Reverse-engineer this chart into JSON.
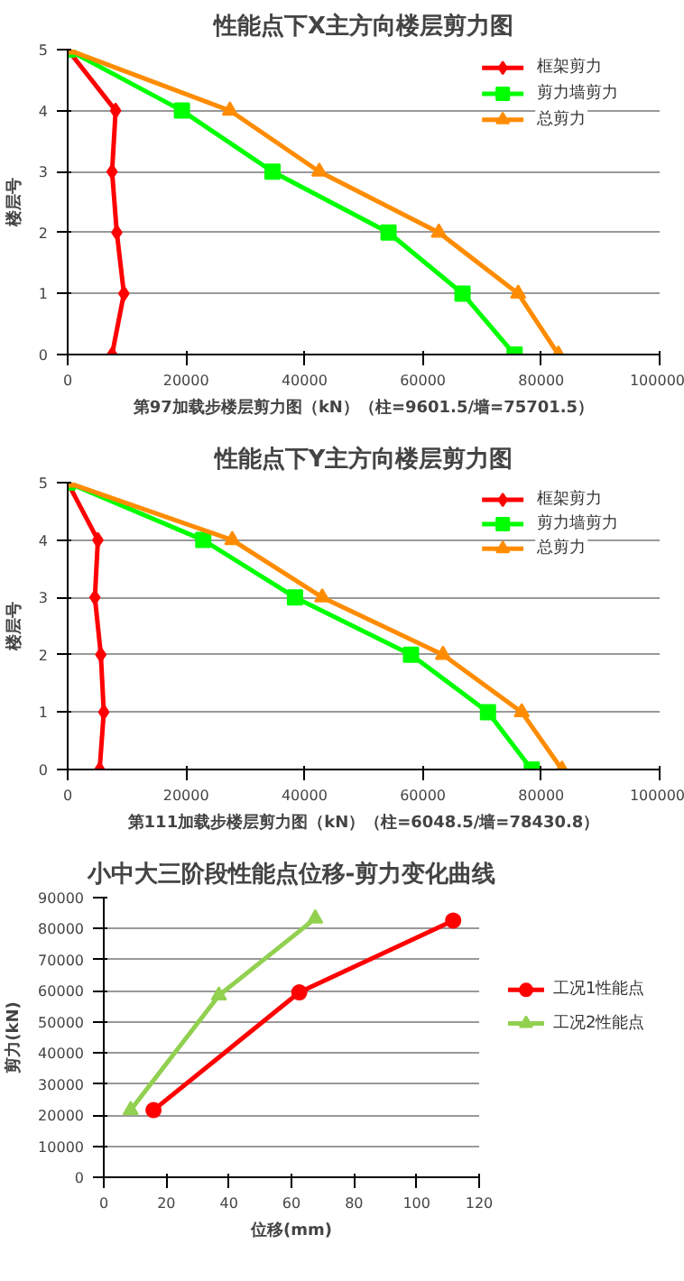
{
  "chart_data": [
    {
      "type": "line",
      "title": "性能点下X主方向楼层剪力图",
      "xlabel": "第97加载步楼层剪力图（kN）（柱=9601.5/墙=75701.5）",
      "ylabel": "楼层号",
      "orientation": "horizontal",
      "categories": [
        "5",
        "4",
        "3",
        "2",
        "1",
        "0"
      ],
      "xlim": [
        0,
        100000
      ],
      "xticks": [
        0,
        20000,
        40000,
        60000,
        80000,
        100000
      ],
      "grid": "y",
      "legend": "top right",
      "series": [
        {
          "name": "框架剪力",
          "color": "#ff0000",
          "marker": "diamond",
          "values": [
            0,
            8100,
            7500,
            8300,
            9500,
            7500
          ]
        },
        {
          "name": "剪力墙剪力",
          "color": "#00ff00",
          "marker": "square",
          "values": [
            0,
            19300,
            34600,
            54200,
            66700,
            75500
          ]
        },
        {
          "name": "总剪力",
          "color": "#ff8c00",
          "marker": "triangle",
          "values": [
            0,
            27400,
            42500,
            62700,
            76100,
            82900
          ]
        }
      ]
    },
    {
      "type": "line",
      "title": "性能点下Y主方向楼层剪力图",
      "xlabel": "第111加载步楼层剪力图（kN）（柱=6048.5/墙=78430.8）",
      "ylabel": "楼层号",
      "orientation": "horizontal",
      "categories": [
        "5",
        "4",
        "3",
        "2",
        "1",
        "0"
      ],
      "xlim": [
        0,
        100000
      ],
      "xticks": [
        0,
        20000,
        40000,
        60000,
        80000,
        100000
      ],
      "grid": "y",
      "legend": "top right",
      "series": [
        {
          "name": "框架剪力",
          "color": "#ff0000",
          "marker": "diamond",
          "values": [
            0,
            5100,
            4600,
            5600,
            6100,
            5400
          ]
        },
        {
          "name": "剪力墙剪力",
          "color": "#00ff00",
          "marker": "square",
          "values": [
            0,
            22900,
            38400,
            58000,
            71000,
            78400
          ]
        },
        {
          "name": "总剪力",
          "color": "#ff8c00",
          "marker": "triangle",
          "values": [
            0,
            27800,
            43000,
            63400,
            76700,
            83500
          ]
        }
      ]
    },
    {
      "type": "line",
      "title": "小中大三阶段性能点位移-剪力变化曲线",
      "xlabel": "位移(mm)",
      "ylabel": "剪力(kN)",
      "xlim": [
        0,
        120
      ],
      "xticks": [
        0,
        20,
        40,
        60,
        80,
        100,
        120
      ],
      "ylim": [
        0,
        90000
      ],
      "yticks": [
        0,
        10000,
        20000,
        30000,
        40000,
        50000,
        60000,
        70000,
        80000,
        90000
      ],
      "grid": "y",
      "legend": "right",
      "series": [
        {
          "name": "工况1性能点",
          "color": "#ff0000",
          "marker": "circle",
          "x": [
            15.9,
            62.5,
            111.7
          ],
          "values": [
            21600,
            59500,
            82600
          ]
        },
        {
          "name": "工况2性能点",
          "color": "#92d050",
          "marker": "triangle",
          "x": [
            8.6,
            36.8,
            67.6
          ],
          "values": [
            21600,
            58500,
            83300
          ]
        }
      ]
    }
  ]
}
